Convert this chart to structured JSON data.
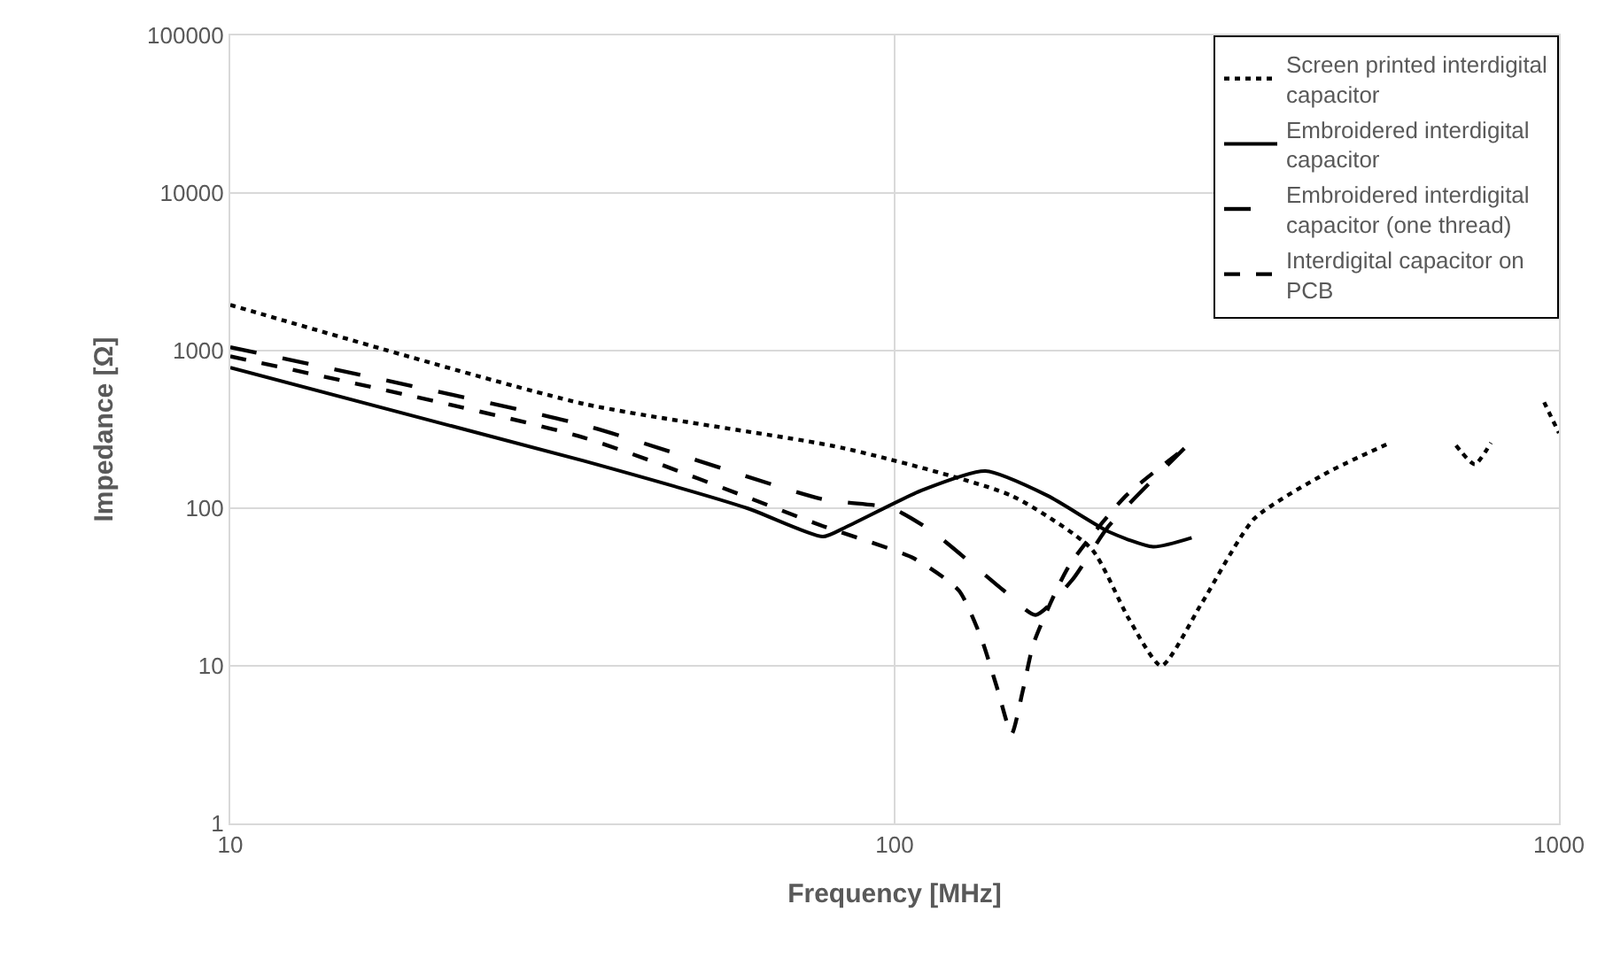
{
  "chart_data": {
    "type": "line",
    "xlabel": "Frequency [MHz]",
    "ylabel": "Impedance [Ω]",
    "log": "xy",
    "grid": true,
    "legend": "top right",
    "marker": "none",
    "xlim": [
      10,
      1000
    ],
    "xticks": [
      10,
      100,
      1000
    ],
    "ylim": [
      1,
      100000
    ],
    "yticks": [
      1,
      10,
      100,
      1000,
      10000,
      100000
    ],
    "series": [
      {
        "name": "Screen printed interdigital capacitor",
        "color": "#000000",
        "line_style": "dotted",
        "x": [
          10,
          34,
          84,
          150,
          198,
          225,
          252,
          290,
          348,
          450,
          557,
          650,
          700,
          747,
          790,
          900,
          950,
          1000
        ],
        "values": [
          1950,
          460,
          240,
          120,
          55,
          20,
          10,
          25,
          86,
          170,
          260,
          null,
          250,
          190,
          260,
          null,
          470,
          300
        ]
      },
      {
        "name": "Embroidered interdigital capacitor",
        "color": "#000000",
        "line_style": "solid",
        "x": [
          10,
          34,
          60,
          78,
          84,
          110,
          137,
          170,
          210,
          245,
          280
        ],
        "values": [
          780,
          200,
          100,
          66,
          75,
          130,
          172,
          120,
          71,
          57,
          65
        ]
      },
      {
        "name": "Embroidered interdigital capacitor (one thread)",
        "color": "#000000",
        "line_style": "longdash",
        "x": [
          10,
          34,
          78,
          99,
          114,
          146,
          163,
          185,
          210,
          273
        ],
        "values": [
          1050,
          337,
          114,
          100,
          71,
          30,
          21,
          35,
          77,
          240
        ]
      },
      {
        "name": "Interdigital capacitor on PCB",
        "color": "#000000",
        "line_style": "dashed",
        "x": [
          10,
          34,
          78,
          107,
          125,
          135,
          143,
          150,
          156,
          162,
          183,
          223,
          276
        ],
        "values": [
          920,
          281,
          77,
          48,
          30,
          15,
          7,
          3.7,
          7,
          14,
          43,
          120,
          247
        ]
      }
    ]
  }
}
